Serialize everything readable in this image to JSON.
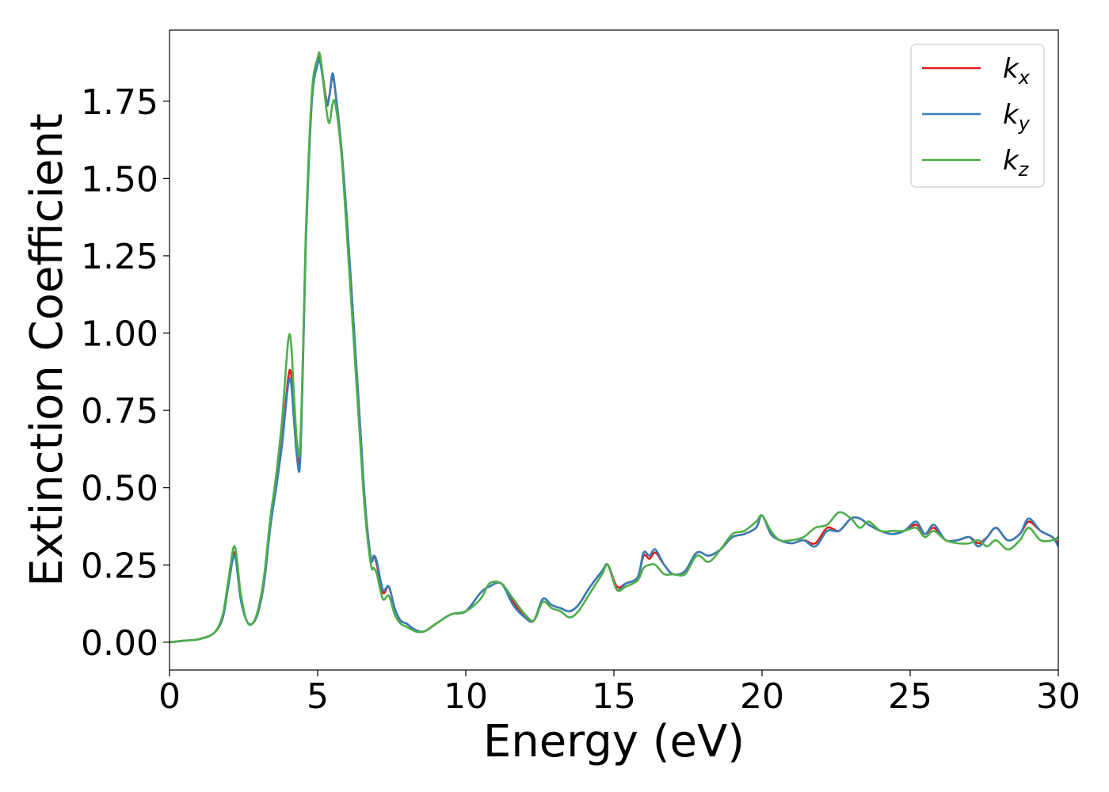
{
  "chart_data": {
    "type": "line",
    "title": "",
    "xlabel": "Energy (eV)",
    "ylabel": "Extinction Coefficient",
    "xlim": [
      0,
      30
    ],
    "ylim": [
      -0.09,
      1.98
    ],
    "xticks": [
      0,
      5,
      10,
      15,
      20,
      25,
      30
    ],
    "xtick_labels": [
      "0",
      "5",
      "10",
      "15",
      "20",
      "25",
      "30"
    ],
    "yticks": [
      0.0,
      0.25,
      0.5,
      0.75,
      1.0,
      1.25,
      1.5,
      1.75
    ],
    "ytick_labels": [
      "0.00",
      "0.25",
      "0.50",
      "0.75",
      "1.00",
      "1.25",
      "1.50",
      "1.75"
    ],
    "grid": false,
    "legend_position": "top-right",
    "x": [
      0,
      0.5,
      1.0,
      1.5,
      1.8,
      2.0,
      2.2,
      2.4,
      2.6,
      2.8,
      3.0,
      3.2,
      3.4,
      3.6,
      3.8,
      4.0,
      4.1,
      4.2,
      4.3,
      4.4,
      4.5,
      4.6,
      4.8,
      5.0,
      5.1,
      5.3,
      5.4,
      5.5,
      5.6,
      5.8,
      6.0,
      6.2,
      6.4,
      6.6,
      6.8,
      6.9,
      7.0,
      7.2,
      7.4,
      7.6,
      7.8,
      8.0,
      8.3,
      8.6,
      9.0,
      9.5,
      10.0,
      10.5,
      10.8,
      11.2,
      11.6,
      12.0,
      12.3,
      12.6,
      12.9,
      13.2,
      13.5,
      13.8,
      14.2,
      14.6,
      14.8,
      15.1,
      15.4,
      15.8,
      16.0,
      16.2,
      16.4,
      16.7,
      17.0,
      17.4,
      17.8,
      18.2,
      18.6,
      19.0,
      19.4,
      19.8,
      20.0,
      20.3,
      20.6,
      21.0,
      21.4,
      21.8,
      22.2,
      22.6,
      23.0,
      23.3,
      23.6,
      24.0,
      24.4,
      24.8,
      25.2,
      25.5,
      25.8,
      26.2,
      26.6,
      27.0,
      27.3,
      27.6,
      27.9,
      28.3,
      28.7,
      29.0,
      29.4,
      29.8,
      30.0
    ],
    "series": [
      {
        "name": "k_x",
        "color": "#e41a1c",
        "values": [
          0.0,
          0.005,
          0.01,
          0.03,
          0.08,
          0.2,
          0.29,
          0.15,
          0.07,
          0.06,
          0.1,
          0.2,
          0.38,
          0.5,
          0.65,
          0.85,
          0.87,
          0.75,
          0.62,
          0.6,
          0.9,
          1.3,
          1.75,
          1.88,
          1.88,
          1.75,
          1.77,
          1.83,
          1.78,
          1.6,
          1.35,
          1.05,
          0.75,
          0.45,
          0.27,
          0.28,
          0.25,
          0.16,
          0.18,
          0.11,
          0.07,
          0.06,
          0.04,
          0.035,
          0.06,
          0.09,
          0.1,
          0.16,
          0.18,
          0.19,
          0.13,
          0.08,
          0.07,
          0.14,
          0.12,
          0.11,
          0.1,
          0.12,
          0.18,
          0.23,
          0.25,
          0.18,
          0.19,
          0.21,
          0.28,
          0.27,
          0.29,
          0.25,
          0.22,
          0.23,
          0.29,
          0.28,
          0.3,
          0.34,
          0.35,
          0.37,
          0.41,
          0.35,
          0.33,
          0.32,
          0.33,
          0.32,
          0.37,
          0.36,
          0.4,
          0.4,
          0.38,
          0.36,
          0.35,
          0.36,
          0.38,
          0.35,
          0.37,
          0.33,
          0.33,
          0.34,
          0.32,
          0.34,
          0.37,
          0.33,
          0.35,
          0.39,
          0.36,
          0.34,
          0.32
        ]
      },
      {
        "name": "k_y",
        "color": "#377eb8",
        "values": [
          0.0,
          0.005,
          0.01,
          0.03,
          0.08,
          0.19,
          0.28,
          0.14,
          0.07,
          0.06,
          0.1,
          0.2,
          0.37,
          0.5,
          0.64,
          0.83,
          0.84,
          0.72,
          0.6,
          0.57,
          0.88,
          1.28,
          1.74,
          1.87,
          1.87,
          1.74,
          1.77,
          1.84,
          1.78,
          1.6,
          1.35,
          1.05,
          0.75,
          0.45,
          0.27,
          0.28,
          0.26,
          0.17,
          0.18,
          0.11,
          0.07,
          0.06,
          0.04,
          0.035,
          0.06,
          0.09,
          0.1,
          0.16,
          0.18,
          0.19,
          0.12,
          0.08,
          0.07,
          0.14,
          0.12,
          0.11,
          0.1,
          0.12,
          0.18,
          0.23,
          0.25,
          0.17,
          0.19,
          0.21,
          0.29,
          0.28,
          0.3,
          0.25,
          0.22,
          0.23,
          0.29,
          0.28,
          0.3,
          0.34,
          0.35,
          0.37,
          0.41,
          0.35,
          0.33,
          0.32,
          0.33,
          0.31,
          0.36,
          0.36,
          0.4,
          0.4,
          0.38,
          0.36,
          0.35,
          0.36,
          0.39,
          0.35,
          0.38,
          0.33,
          0.33,
          0.34,
          0.31,
          0.34,
          0.37,
          0.33,
          0.35,
          0.4,
          0.36,
          0.34,
          0.31
        ]
      },
      {
        "name": "k_z",
        "color": "#4daf4a",
        "values": [
          0.0,
          0.005,
          0.01,
          0.03,
          0.09,
          0.21,
          0.31,
          0.16,
          0.07,
          0.06,
          0.11,
          0.22,
          0.4,
          0.54,
          0.72,
          0.97,
          0.97,
          0.8,
          0.65,
          0.62,
          0.92,
          1.32,
          1.77,
          1.89,
          1.89,
          1.72,
          1.68,
          1.74,
          1.74,
          1.58,
          1.3,
          1.0,
          0.7,
          0.42,
          0.25,
          0.24,
          0.22,
          0.14,
          0.15,
          0.09,
          0.06,
          0.05,
          0.035,
          0.035,
          0.06,
          0.09,
          0.1,
          0.14,
          0.19,
          0.19,
          0.14,
          0.09,
          0.07,
          0.13,
          0.11,
          0.1,
          0.08,
          0.1,
          0.16,
          0.22,
          0.25,
          0.17,
          0.18,
          0.2,
          0.24,
          0.25,
          0.25,
          0.22,
          0.22,
          0.22,
          0.28,
          0.26,
          0.3,
          0.35,
          0.36,
          0.39,
          0.41,
          0.36,
          0.33,
          0.33,
          0.34,
          0.37,
          0.38,
          0.42,
          0.4,
          0.37,
          0.39,
          0.36,
          0.36,
          0.36,
          0.37,
          0.34,
          0.36,
          0.33,
          0.32,
          0.32,
          0.33,
          0.31,
          0.33,
          0.3,
          0.33,
          0.37,
          0.33,
          0.33,
          0.34
        ]
      }
    ],
    "legend": [
      {
        "base": "k",
        "sub": "x",
        "color": "#e41a1c"
      },
      {
        "base": "k",
        "sub": "y",
        "color": "#377eb8"
      },
      {
        "base": "k",
        "sub": "z",
        "color": "#4daf4a"
      }
    ]
  }
}
